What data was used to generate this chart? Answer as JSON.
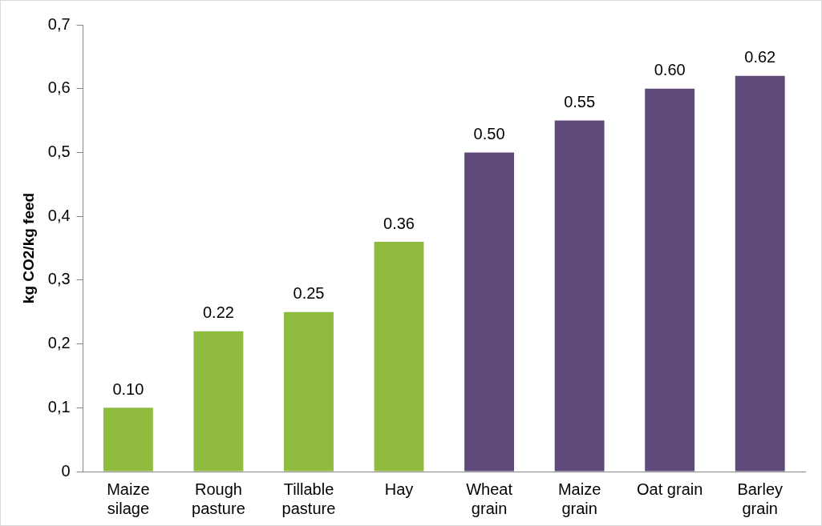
{
  "chart_data": {
    "type": "bar",
    "ylabel": "kg CO2/kg feed",
    "categories": [
      "Maize silage",
      "Rough pasture",
      "Tillable pasture",
      "Hay",
      "Wheat grain",
      "Maize grain",
      "Oat grain",
      "Barley grain"
    ],
    "values": [
      0.1,
      0.22,
      0.25,
      0.36,
      0.5,
      0.55,
      0.6,
      0.62
    ],
    "colors": [
      "#8fbc3f",
      "#8fbc3f",
      "#8fbc3f",
      "#8fbc3f",
      "#604a7b",
      "#604a7b",
      "#604a7b",
      "#604a7b"
    ],
    "value_labels": [
      "0.10",
      "0.22",
      "0.25",
      "0.36",
      "0.50",
      "0.55",
      "0.60",
      "0.62"
    ],
    "ylim": [
      0,
      0.7
    ],
    "yticks": [
      0,
      {
        "value": 0.1,
        "label": "0,1"
      },
      {
        "value": 0.2,
        "label": "0,2"
      },
      {
        "value": 0.3,
        "label": "0,3"
      },
      {
        "value": 0.4,
        "label": "0,4"
      },
      {
        "value": 0.5,
        "label": "0,5"
      },
      {
        "value": 0.6,
        "label": "0,6"
      },
      {
        "value": 0.7,
        "label": "0,7"
      }
    ],
    "grid": false,
    "legend": false
  }
}
